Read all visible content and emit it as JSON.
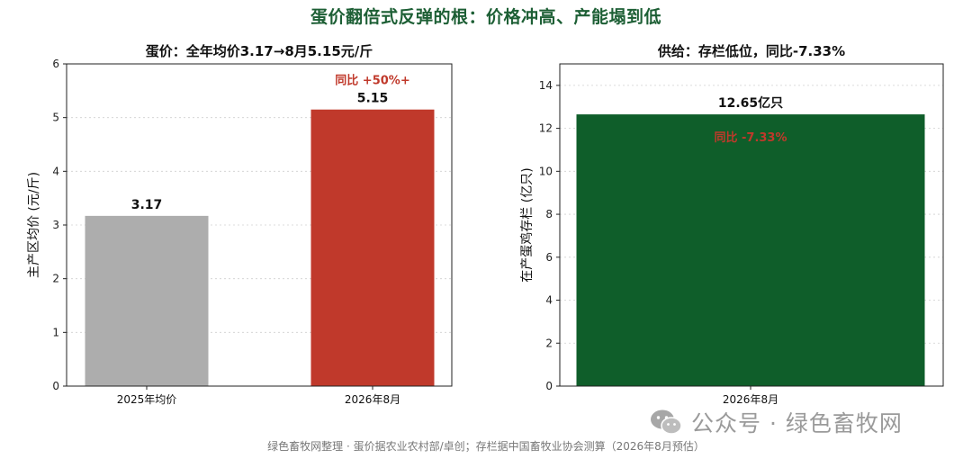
{
  "title": "蛋价翻倍式反弹的根：价格冲高、产能塌到低",
  "chart_data": [
    {
      "type": "bar",
      "title": "蛋价：全年均价3.17→8月5.15元/斤",
      "ylabel": "主产区均价 (元/斤)",
      "categories": [
        "2025年均价",
        "2026年8月"
      ],
      "values": [
        3.17,
        5.15
      ],
      "value_labels": [
        "3.17",
        "5.15"
      ],
      "bar_colors": [
        "#adadad",
        "#c0392b"
      ],
      "ylim": [
        0,
        6
      ],
      "yticks": [
        "0",
        "1",
        "2",
        "3",
        "4",
        "5",
        "6"
      ],
      "grid": "horizontal-dotted",
      "annotation": "同比 +50%+",
      "annotation_color": "#c0392b"
    },
    {
      "type": "bar",
      "title": "供给：存栏低位，同比-7.33%",
      "ylabel": "在产蛋鸡存栏 (亿只)",
      "categories": [
        "2026年8月"
      ],
      "values": [
        12.65
      ],
      "value_labels": [
        "12.65亿只"
      ],
      "bar_colors": [
        "#0f5e2a"
      ],
      "ylim": [
        0,
        15
      ],
      "yticks": [
        "0",
        "2",
        "4",
        "6",
        "8",
        "10",
        "12",
        "14"
      ],
      "grid": "horizontal-dotted",
      "annotation": "同比 -7.33%",
      "annotation_color": "#c0392b"
    }
  ],
  "watermark": {
    "text": "公众号 · 绿色畜牧网",
    "icon": "wechat-icon"
  },
  "footer": "绿色畜牧网整理 · 蛋价据农业农村部/卓创；存栏据中国畜牧业协会测算（2026年8月预估）"
}
